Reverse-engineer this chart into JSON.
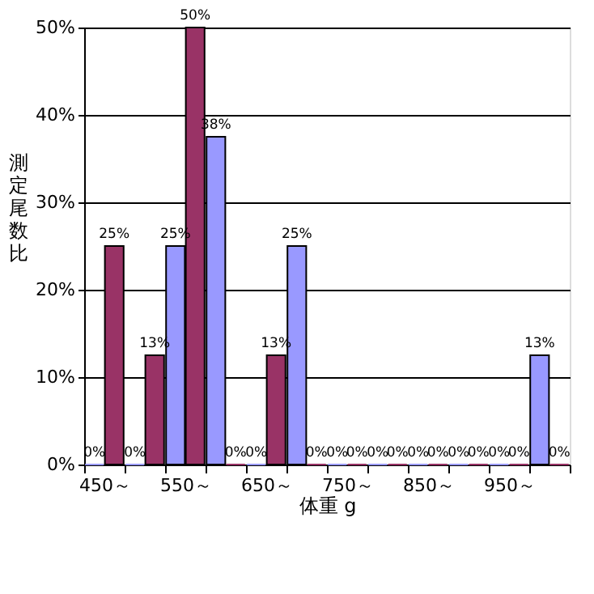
{
  "chart_data": {
    "type": "bar",
    "xlabel": "体重 g",
    "ylabel": "測定尾数比",
    "categories": [
      "450～",
      null,
      "550～",
      null,
      "650～",
      null,
      "750～",
      null,
      "850～",
      null,
      "950～",
      null
    ],
    "series": [
      {
        "color": "#9999ff",
        "values": [
          0,
          0,
          25,
          37.5,
          0,
          25,
          0,
          0,
          0,
          0,
          0,
          12.5
        ],
        "value_labels": [
          "0%",
          "0%",
          "25%",
          "38%",
          "0%",
          "25%",
          "0%",
          "0%",
          "0%",
          "0%",
          "0%",
          "13%"
        ]
      },
      {
        "color": "#993366",
        "values": [
          25,
          12.5,
          50,
          0,
          12.5,
          0,
          0,
          0,
          0,
          0,
          0,
          0
        ],
        "value_labels": [
          "25%",
          "13%",
          "50%",
          "0%",
          "13%",
          "0%",
          "0%",
          "0%",
          "0%",
          "0%",
          "0%",
          "0%"
        ]
      }
    ],
    "ylim": [
      0,
      50
    ],
    "yticks": [
      {
        "value": 0,
        "label": "0%"
      },
      {
        "value": 10,
        "label": "10%"
      },
      {
        "value": 20,
        "label": "20%"
      },
      {
        "value": 30,
        "label": "30%"
      },
      {
        "value": 40,
        "label": "40%"
      },
      {
        "value": 50,
        "label": "50%"
      }
    ],
    "grid": "y",
    "legend": false
  }
}
